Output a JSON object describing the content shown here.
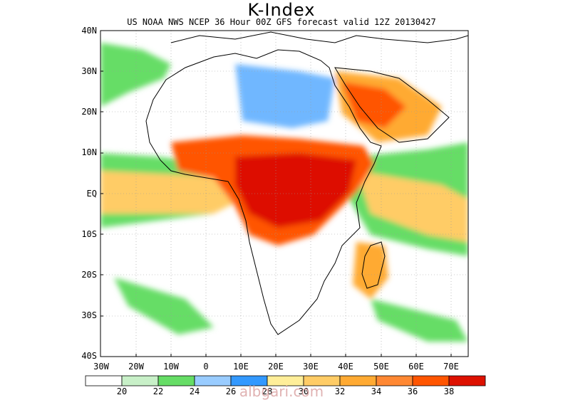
{
  "header": {
    "title": "K-Index",
    "subtitle": "US NOAA NWS NCEP 36 Hour 00Z GFS forecast valid 12Z 20130427"
  },
  "axes": {
    "lat_labels": [
      "40N",
      "30N",
      "20N",
      "10N",
      "EQ",
      "10S",
      "20S",
      "30S",
      "40S"
    ],
    "lon_labels": [
      "30W",
      "20W",
      "10W",
      "0",
      "10E",
      "20E",
      "30E",
      "40E",
      "50E",
      "60E",
      "70E"
    ]
  },
  "colorbar": {
    "colors": [
      "#ffffff",
      "#c8f0c8",
      "#66dd66",
      "#99ccff",
      "#3399ff",
      "#ffee99",
      "#ffcc66",
      "#ffaa33",
      "#ff8833",
      "#ff5500",
      "#dd1100"
    ],
    "labels": [
      "20",
      "22",
      "24",
      "26",
      "28",
      "30",
      "32",
      "34",
      "36",
      "38"
    ]
  },
  "watermark": "albgari.com"
}
